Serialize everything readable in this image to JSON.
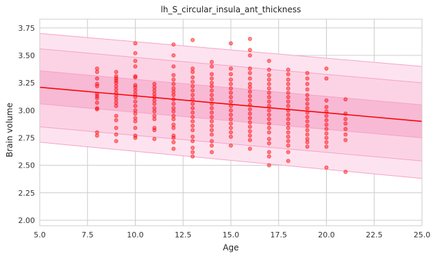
{
  "chart_data": {
    "type": "scatter",
    "title": "lh_S_circular_insula_ant_thickness",
    "xlabel": "Age",
    "ylabel": "Brain volume",
    "xlim": [
      5.0,
      25.0
    ],
    "ylim": [
      1.95,
      3.83
    ],
    "xticks": [
      "5.0",
      "7.5",
      "10.0",
      "12.5",
      "15.0",
      "17.5",
      "20.0",
      "22.5",
      "25.0"
    ],
    "yticks": [
      "2.00",
      "2.25",
      "2.50",
      "2.75",
      "3.00",
      "3.25",
      "3.50",
      "3.75"
    ],
    "grid": true,
    "colors": {
      "points": "#ff0000",
      "trend": "#ff0000",
      "band_outer": "#fde3ef",
      "band_middle": "#fcd3e5",
      "band_inner": "#f8b9d5",
      "band_edge": "#f4a3c6",
      "grid": "#cccccc"
    },
    "trend_line": {
      "x": [
        5,
        25
      ],
      "y": [
        3.21,
        2.9
      ]
    },
    "bands": [
      {
        "level": "outer",
        "lower": [
          2.71,
          2.38
        ],
        "upper": [
          3.7,
          3.4
        ]
      },
      {
        "level": "middle",
        "lower": [
          2.85,
          2.54
        ],
        "upper": [
          3.56,
          3.25
        ]
      },
      {
        "level": "inner",
        "lower": [
          3.06,
          2.75
        ],
        "upper": [
          3.36,
          3.05
        ]
      }
    ],
    "points": [
      {
        "x": 8,
        "y": 3.38
      },
      {
        "x": 8,
        "y": 3.35
      },
      {
        "x": 8,
        "y": 3.29
      },
      {
        "x": 8,
        "y": 3.24
      },
      {
        "x": 8,
        "y": 3.22
      },
      {
        "x": 8,
        "y": 3.15
      },
      {
        "x": 8,
        "y": 3.13
      },
      {
        "x": 8,
        "y": 3.11
      },
      {
        "x": 8,
        "y": 3.07
      },
      {
        "x": 8,
        "y": 3.02
      },
      {
        "x": 8,
        "y": 3.01
      },
      {
        "x": 8,
        "y": 2.8
      },
      {
        "x": 8,
        "y": 2.77
      },
      {
        "x": 9,
        "y": 3.35
      },
      {
        "x": 9,
        "y": 3.31
      },
      {
        "x": 9,
        "y": 3.29
      },
      {
        "x": 9,
        "y": 3.27
      },
      {
        "x": 9,
        "y": 3.25
      },
      {
        "x": 9,
        "y": 3.22
      },
      {
        "x": 9,
        "y": 3.19
      },
      {
        "x": 9,
        "y": 3.16
      },
      {
        "x": 9,
        "y": 3.13
      },
      {
        "x": 9,
        "y": 3.1
      },
      {
        "x": 9,
        "y": 3.07
      },
      {
        "x": 9,
        "y": 3.04
      },
      {
        "x": 9,
        "y": 2.95
      },
      {
        "x": 9,
        "y": 2.91
      },
      {
        "x": 9,
        "y": 2.84
      },
      {
        "x": 9,
        "y": 2.78
      },
      {
        "x": 9,
        "y": 2.72
      },
      {
        "x": 10,
        "y": 3.61
      },
      {
        "x": 10,
        "y": 3.52
      },
      {
        "x": 10,
        "y": 3.45
      },
      {
        "x": 10,
        "y": 3.4
      },
      {
        "x": 10,
        "y": 3.31
      },
      {
        "x": 10,
        "y": 3.3
      },
      {
        "x": 10,
        "y": 3.23
      },
      {
        "x": 10,
        "y": 3.21
      },
      {
        "x": 10,
        "y": 3.18
      },
      {
        "x": 10,
        "y": 3.15
      },
      {
        "x": 10,
        "y": 3.12
      },
      {
        "x": 10,
        "y": 3.08
      },
      {
        "x": 10,
        "y": 3.04
      },
      {
        "x": 10,
        "y": 3.0
      },
      {
        "x": 10,
        "y": 2.97
      },
      {
        "x": 10,
        "y": 2.93
      },
      {
        "x": 10,
        "y": 2.9
      },
      {
        "x": 10,
        "y": 2.84
      },
      {
        "x": 10,
        "y": 2.77
      },
      {
        "x": 10,
        "y": 2.75
      },
      {
        "x": 11,
        "y": 3.24
      },
      {
        "x": 11,
        "y": 3.21
      },
      {
        "x": 11,
        "y": 3.18
      },
      {
        "x": 11,
        "y": 3.15
      },
      {
        "x": 11,
        "y": 3.12
      },
      {
        "x": 11,
        "y": 3.09
      },
      {
        "x": 11,
        "y": 3.06
      },
      {
        "x": 11,
        "y": 3.02
      },
      {
        "x": 11,
        "y": 2.99
      },
      {
        "x": 11,
        "y": 2.95
      },
      {
        "x": 11,
        "y": 2.92
      },
      {
        "x": 11,
        "y": 2.84
      },
      {
        "x": 11,
        "y": 2.82
      },
      {
        "x": 11,
        "y": 2.74
      },
      {
        "x": 12,
        "y": 3.6
      },
      {
        "x": 12,
        "y": 3.5
      },
      {
        "x": 12,
        "y": 3.4
      },
      {
        "x": 12,
        "y": 3.32
      },
      {
        "x": 12,
        "y": 3.28
      },
      {
        "x": 12,
        "y": 3.24
      },
      {
        "x": 12,
        "y": 3.2
      },
      {
        "x": 12,
        "y": 3.17
      },
      {
        "x": 12,
        "y": 3.14
      },
      {
        "x": 12,
        "y": 3.1
      },
      {
        "x": 12,
        "y": 3.06
      },
      {
        "x": 12,
        "y": 3.02
      },
      {
        "x": 12,
        "y": 2.99
      },
      {
        "x": 12,
        "y": 2.95
      },
      {
        "x": 12,
        "y": 2.92
      },
      {
        "x": 12,
        "y": 2.87
      },
      {
        "x": 12,
        "y": 2.84
      },
      {
        "x": 12,
        "y": 2.77
      },
      {
        "x": 12,
        "y": 2.75
      },
      {
        "x": 12,
        "y": 2.71
      },
      {
        "x": 12,
        "y": 2.65
      },
      {
        "x": 13,
        "y": 3.64
      },
      {
        "x": 13,
        "y": 3.38
      },
      {
        "x": 13,
        "y": 3.35
      },
      {
        "x": 13,
        "y": 3.3
      },
      {
        "x": 13,
        "y": 3.26
      },
      {
        "x": 13,
        "y": 3.22
      },
      {
        "x": 13,
        "y": 3.18
      },
      {
        "x": 13,
        "y": 3.14
      },
      {
        "x": 13,
        "y": 3.1
      },
      {
        "x": 13,
        "y": 3.06
      },
      {
        "x": 13,
        "y": 3.02
      },
      {
        "x": 13,
        "y": 2.98
      },
      {
        "x": 13,
        "y": 2.94
      },
      {
        "x": 13,
        "y": 2.9
      },
      {
        "x": 13,
        "y": 2.86
      },
      {
        "x": 13,
        "y": 2.82
      },
      {
        "x": 13,
        "y": 2.76
      },
      {
        "x": 13,
        "y": 2.72
      },
      {
        "x": 13,
        "y": 2.66
      },
      {
        "x": 13,
        "y": 2.62
      },
      {
        "x": 13,
        "y": 2.58
      },
      {
        "x": 14,
        "y": 3.44
      },
      {
        "x": 14,
        "y": 3.4
      },
      {
        "x": 14,
        "y": 3.33
      },
      {
        "x": 14,
        "y": 3.29
      },
      {
        "x": 14,
        "y": 3.25
      },
      {
        "x": 14,
        "y": 3.22
      },
      {
        "x": 14,
        "y": 3.18
      },
      {
        "x": 14,
        "y": 3.14
      },
      {
        "x": 14,
        "y": 3.1
      },
      {
        "x": 14,
        "y": 3.06
      },
      {
        "x": 14,
        "y": 3.02
      },
      {
        "x": 14,
        "y": 2.98
      },
      {
        "x": 14,
        "y": 2.94
      },
      {
        "x": 14,
        "y": 2.9
      },
      {
        "x": 14,
        "y": 2.86
      },
      {
        "x": 14,
        "y": 2.82
      },
      {
        "x": 14,
        "y": 2.78
      },
      {
        "x": 14,
        "y": 2.72
      },
      {
        "x": 14,
        "y": 2.68
      },
      {
        "x": 14,
        "y": 2.62
      },
      {
        "x": 15,
        "y": 3.61
      },
      {
        "x": 15,
        "y": 3.38
      },
      {
        "x": 15,
        "y": 3.33
      },
      {
        "x": 15,
        "y": 3.28
      },
      {
        "x": 15,
        "y": 3.24
      },
      {
        "x": 15,
        "y": 3.2
      },
      {
        "x": 15,
        "y": 3.16
      },
      {
        "x": 15,
        "y": 3.12
      },
      {
        "x": 15,
        "y": 3.08
      },
      {
        "x": 15,
        "y": 3.04
      },
      {
        "x": 15,
        "y": 3.0
      },
      {
        "x": 15,
        "y": 2.96
      },
      {
        "x": 15,
        "y": 2.92
      },
      {
        "x": 15,
        "y": 2.88
      },
      {
        "x": 15,
        "y": 2.84
      },
      {
        "x": 15,
        "y": 2.8
      },
      {
        "x": 15,
        "y": 2.76
      },
      {
        "x": 15,
        "y": 2.68
      },
      {
        "x": 16,
        "y": 3.65
      },
      {
        "x": 16,
        "y": 3.55
      },
      {
        "x": 16,
        "y": 3.5
      },
      {
        "x": 16,
        "y": 3.38
      },
      {
        "x": 16,
        "y": 3.34
      },
      {
        "x": 16,
        "y": 3.29
      },
      {
        "x": 16,
        "y": 3.24
      },
      {
        "x": 16,
        "y": 3.21
      },
      {
        "x": 16,
        "y": 3.17
      },
      {
        "x": 16,
        "y": 3.13
      },
      {
        "x": 16,
        "y": 3.09
      },
      {
        "x": 16,
        "y": 3.05
      },
      {
        "x": 16,
        "y": 3.01
      },
      {
        "x": 16,
        "y": 2.97
      },
      {
        "x": 16,
        "y": 2.93
      },
      {
        "x": 16,
        "y": 2.89
      },
      {
        "x": 16,
        "y": 2.85
      },
      {
        "x": 16,
        "y": 2.81
      },
      {
        "x": 16,
        "y": 2.77
      },
      {
        "x": 16,
        "y": 2.73
      },
      {
        "x": 16,
        "y": 2.65
      },
      {
        "x": 17,
        "y": 3.45
      },
      {
        "x": 17,
        "y": 3.37
      },
      {
        "x": 17,
        "y": 3.32
      },
      {
        "x": 17,
        "y": 3.28
      },
      {
        "x": 17,
        "y": 3.24
      },
      {
        "x": 17,
        "y": 3.2
      },
      {
        "x": 17,
        "y": 3.16
      },
      {
        "x": 17,
        "y": 3.12
      },
      {
        "x": 17,
        "y": 3.08
      },
      {
        "x": 17,
        "y": 3.04
      },
      {
        "x": 17,
        "y": 3.0
      },
      {
        "x": 17,
        "y": 2.96
      },
      {
        "x": 17,
        "y": 2.92
      },
      {
        "x": 17,
        "y": 2.88
      },
      {
        "x": 17,
        "y": 2.84
      },
      {
        "x": 17,
        "y": 2.8
      },
      {
        "x": 17,
        "y": 2.74
      },
      {
        "x": 17,
        "y": 2.7
      },
      {
        "x": 17,
        "y": 2.62
      },
      {
        "x": 17,
        "y": 2.58
      },
      {
        "x": 17,
        "y": 2.5
      },
      {
        "x": 18,
        "y": 3.37
      },
      {
        "x": 18,
        "y": 3.33
      },
      {
        "x": 18,
        "y": 3.28
      },
      {
        "x": 18,
        "y": 3.24
      },
      {
        "x": 18,
        "y": 3.2
      },
      {
        "x": 18,
        "y": 3.16
      },
      {
        "x": 18,
        "y": 3.12
      },
      {
        "x": 18,
        "y": 3.08
      },
      {
        "x": 18,
        "y": 3.04
      },
      {
        "x": 18,
        "y": 3.0
      },
      {
        "x": 18,
        "y": 2.96
      },
      {
        "x": 18,
        "y": 2.92
      },
      {
        "x": 18,
        "y": 2.88
      },
      {
        "x": 18,
        "y": 2.84
      },
      {
        "x": 18,
        "y": 2.8
      },
      {
        "x": 18,
        "y": 2.76
      },
      {
        "x": 18,
        "y": 2.72
      },
      {
        "x": 18,
        "y": 2.68
      },
      {
        "x": 18,
        "y": 2.62
      },
      {
        "x": 18,
        "y": 2.54
      },
      {
        "x": 19,
        "y": 3.34
      },
      {
        "x": 19,
        "y": 3.29
      },
      {
        "x": 19,
        "y": 3.24
      },
      {
        "x": 19,
        "y": 3.19
      },
      {
        "x": 19,
        "y": 3.14
      },
      {
        "x": 19,
        "y": 3.1
      },
      {
        "x": 19,
        "y": 3.06
      },
      {
        "x": 19,
        "y": 3.02
      },
      {
        "x": 19,
        "y": 2.98
      },
      {
        "x": 19,
        "y": 2.94
      },
      {
        "x": 19,
        "y": 2.9
      },
      {
        "x": 19,
        "y": 2.86
      },
      {
        "x": 19,
        "y": 2.82
      },
      {
        "x": 19,
        "y": 2.78
      },
      {
        "x": 19,
        "y": 2.74
      },
      {
        "x": 19,
        "y": 2.71
      },
      {
        "x": 19,
        "y": 2.67
      },
      {
        "x": 20,
        "y": 3.38
      },
      {
        "x": 20,
        "y": 3.29
      },
      {
        "x": 20,
        "y": 3.09
      },
      {
        "x": 20,
        "y": 3.03
      },
      {
        "x": 20,
        "y": 2.99
      },
      {
        "x": 20,
        "y": 2.95
      },
      {
        "x": 20,
        "y": 2.91
      },
      {
        "x": 20,
        "y": 2.87
      },
      {
        "x": 20,
        "y": 2.83
      },
      {
        "x": 20,
        "y": 2.79
      },
      {
        "x": 20,
        "y": 2.75
      },
      {
        "x": 20,
        "y": 2.71
      },
      {
        "x": 20,
        "y": 2.67
      },
      {
        "x": 20,
        "y": 2.48
      },
      {
        "x": 21,
        "y": 3.1
      },
      {
        "x": 21,
        "y": 2.97
      },
      {
        "x": 21,
        "y": 2.92
      },
      {
        "x": 21,
        "y": 2.88
      },
      {
        "x": 21,
        "y": 2.83
      },
      {
        "x": 21,
        "y": 2.78
      },
      {
        "x": 21,
        "y": 2.73
      },
      {
        "x": 21,
        "y": 2.44
      }
    ]
  }
}
